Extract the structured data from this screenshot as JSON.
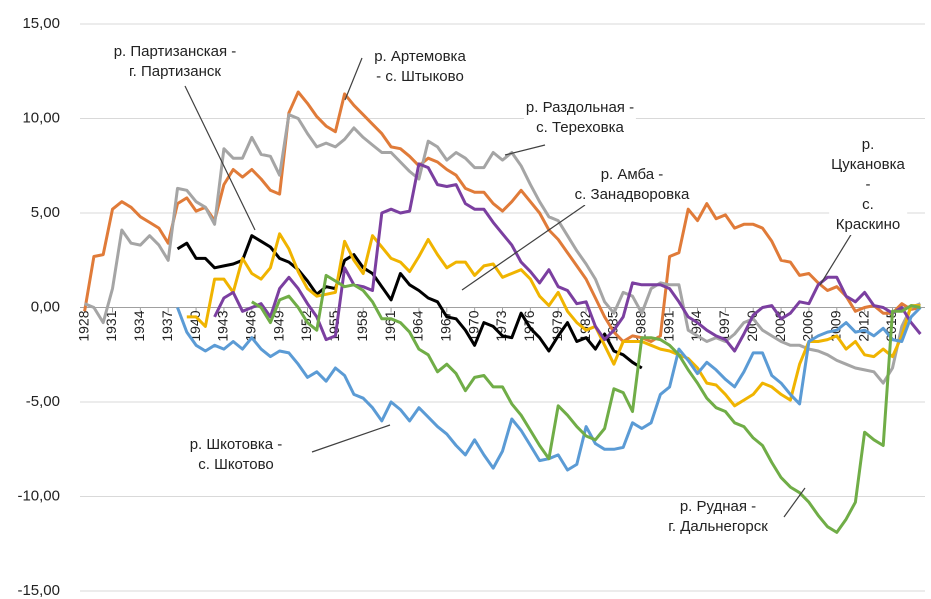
{
  "chart_data": {
    "type": "line",
    "x": [
      1928,
      1929,
      1930,
      1931,
      1932,
      1933,
      1934,
      1935,
      1936,
      1937,
      1938,
      1939,
      1940,
      1941,
      1942,
      1943,
      1944,
      1945,
      1946,
      1947,
      1948,
      1949,
      1950,
      1951,
      1952,
      1953,
      1954,
      1955,
      1956,
      1957,
      1958,
      1959,
      1960,
      1961,
      1962,
      1963,
      1964,
      1965,
      1966,
      1967,
      1968,
      1969,
      1970,
      1971,
      1972,
      1973,
      1974,
      1975,
      1976,
      1977,
      1978,
      1979,
      1980,
      1981,
      1982,
      1983,
      1984,
      1985,
      1986,
      1987,
      1988,
      1989,
      1990,
      1991,
      1992,
      1993,
      1994,
      1995,
      1996,
      1997,
      1998,
      1999,
      2000,
      2001,
      2002,
      2003,
      2004,
      2005,
      2006,
      2007,
      2008,
      2009,
      2010,
      2011,
      2012,
      2013,
      2014,
      2015,
      2016,
      2017,
      2018
    ],
    "xlim": [
      1927.5,
      2018.5
    ],
    "xticks": [
      1928,
      1931,
      1934,
      1937,
      1940,
      1943,
      1946,
      1949,
      1952,
      1955,
      1958,
      1961,
      1964,
      1967,
      1970,
      1973,
      1976,
      1979,
      1982,
      1985,
      1988,
      1991,
      1994,
      1997,
      2000,
      2003,
      2006,
      2009,
      2012,
      2015
    ],
    "ylim": [
      -15,
      15
    ],
    "yticks": [
      {
        "value": -15,
        "label": "-15,00"
      },
      {
        "value": -10,
        "label": "-10,00"
      },
      {
        "value": -5,
        "label": "-5,00"
      },
      {
        "value": 0,
        "label": "0,00"
      },
      {
        "value": 5,
        "label": "5,00"
      },
      {
        "value": 10,
        "label": "10,00"
      },
      {
        "value": 15,
        "label": "15,00"
      }
    ],
    "grid": true,
    "series": [
      {
        "name": "р. Артемовка\n- с. Штыково",
        "color": "#e07b39",
        "values": [
          -0.2,
          2.7,
          2.8,
          5.2,
          5.6,
          5.3,
          4.8,
          4.5,
          4.2,
          3.4,
          5.5,
          5.8,
          5.1,
          5.3,
          4.6,
          6.5,
          7.3,
          6.9,
          7.3,
          6.8,
          6.2,
          6.0,
          10.3,
          11.4,
          10.8,
          10.1,
          9.6,
          9.3,
          11.3,
          10.7,
          10.2,
          9.7,
          9.2,
          8.5,
          8.4,
          8.0,
          7.5,
          7.9,
          7.7,
          7.3,
          7.0,
          6.3,
          6.1,
          6.1,
          5.5,
          5.1,
          5.6,
          6.2,
          5.6,
          5.0,
          4.1,
          3.6,
          2.9,
          2.2,
          1.5,
          0.5,
          -0.5,
          -1.3,
          -1.8,
          -1.5,
          -1.6,
          -1.8,
          -1.5,
          2.7,
          2.9,
          5.2,
          4.6,
          5.5,
          4.7,
          4.9,
          4.2,
          4.4,
          4.4,
          4.2,
          3.5,
          2.5,
          2.4,
          1.7,
          1.8,
          1.3,
          0.9,
          1.1,
          0.6,
          -0.2,
          0.0,
          0.1,
          -0.3,
          -0.3,
          0.2,
          -0.1,
          0.0
        ]
      },
      {
        "name": "р. Раздольная -\nс. Тереховка",
        "color": "#a5a5a5",
        "values": [
          0.2,
          0.0,
          -0.8,
          1.0,
          4.1,
          3.4,
          3.3,
          3.8,
          3.3,
          2.5,
          6.3,
          6.2,
          5.6,
          5.3,
          4.4,
          8.4,
          7.9,
          7.9,
          9.0,
          8.1,
          8.0,
          7.0,
          10.2,
          10.0,
          9.2,
          8.5,
          8.7,
          8.5,
          8.9,
          9.5,
          9.0,
          8.6,
          8.2,
          8.2,
          7.7,
          7.2,
          6.8,
          8.8,
          8.5,
          7.8,
          8.2,
          7.9,
          7.4,
          7.4,
          8.2,
          7.8,
          8.2,
          7.5,
          6.5,
          5.6,
          4.8,
          4.6,
          3.8,
          3.0,
          2.3,
          1.5,
          0.3,
          -0.3,
          0.8,
          0.6,
          -0.3,
          1.0,
          1.3,
          1.2,
          1.2,
          -1.2,
          -1.5,
          -1.8,
          -1.6,
          -1.8,
          -1.4,
          -0.8,
          -0.6,
          -1.2,
          -1.5,
          -1.8,
          -2.0,
          -2.0,
          -2.2,
          -2.3,
          -2.5,
          -2.8,
          -3.0,
          -3.2,
          -3.3,
          -3.4,
          -4.0,
          -3.2,
          -1.0,
          0.0,
          0.2
        ]
      },
      {
        "name": "р. Партизанская -\nг. Партизанск",
        "color": "#000000",
        "values": [
          null,
          null,
          null,
          null,
          null,
          null,
          null,
          null,
          null,
          null,
          3.1,
          3.4,
          2.6,
          2.6,
          2.1,
          2.2,
          2.3,
          2.5,
          3.8,
          3.5,
          3.2,
          2.6,
          2.4,
          2.0,
          1.4,
          0.7,
          1.1,
          1.0,
          2.5,
          2.8,
          2.1,
          1.8,
          1.1,
          0.4,
          1.8,
          1.2,
          0.9,
          0.5,
          0.3,
          -0.5,
          -0.6,
          -1.2,
          -2.0,
          -0.8,
          -1.0,
          -1.5,
          -1.6,
          -0.3,
          -1.1,
          -1.6,
          -2.3,
          -1.5,
          -0.8,
          -1.8,
          -1.6,
          -2.2,
          -1.4,
          -2.3,
          -2.5,
          -2.9,
          -3.2,
          null,
          null,
          null,
          null,
          null,
          null,
          null,
          null,
          null,
          null,
          null,
          null,
          null,
          null,
          null,
          null,
          null,
          null,
          null,
          null,
          null,
          null,
          null,
          null,
          null,
          null,
          null,
          null,
          null,
          null
        ]
      },
      {
        "name": "р. Амба -\nс. Занадворовка",
        "color": "#f0b400",
        "values": [
          null,
          null,
          null,
          null,
          null,
          null,
          null,
          null,
          null,
          null,
          null,
          -0.5,
          -0.5,
          -1.0,
          1.5,
          1.5,
          0.8,
          2.6,
          1.8,
          1.5,
          2.1,
          3.9,
          3.1,
          1.9,
          1.0,
          0.6,
          0.7,
          0.8,
          3.5,
          2.5,
          1.8,
          3.8,
          3.2,
          2.6,
          2.4,
          1.9,
          2.7,
          3.6,
          2.8,
          2.1,
          2.4,
          2.4,
          1.7,
          2.2,
          2.3,
          1.6,
          1.8,
          2.0,
          1.5,
          0.6,
          0.1,
          0.8,
          -0.2,
          -0.8,
          -1.2,
          -1.0,
          -2.0,
          -3.0,
          -1.8,
          -1.8,
          -1.8,
          -2.0,
          -2.2,
          -2.3,
          -2.5,
          -2.7,
          -3.2,
          -4.0,
          -4.1,
          -4.6,
          -5.2,
          -4.9,
          -4.6,
          -4.0,
          -4.2,
          -4.6,
          -4.9,
          -3.0,
          -1.8,
          -1.8,
          -1.7,
          -1.5,
          -2.2,
          -1.8,
          -2.5,
          -2.6,
          -2.2,
          -2.6,
          -1.5,
          0.1,
          0.1
        ]
      },
      {
        "name": "р. Цукановка -\nс. Краскино",
        "color": "#7b3fa0",
        "values": [
          null,
          null,
          null,
          null,
          null,
          null,
          null,
          null,
          null,
          null,
          null,
          null,
          null,
          null,
          -0.5,
          0.5,
          0.8,
          -0.2,
          0.0,
          0.2,
          -0.5,
          1.0,
          1.6,
          1.0,
          0.2,
          -0.5,
          -1.7,
          -1.5,
          2.1,
          1.2,
          1.1,
          0.9,
          5.0,
          5.2,
          5.0,
          5.1,
          7.6,
          7.4,
          6.5,
          6.4,
          6.5,
          5.5,
          5.2,
          5.2,
          4.5,
          3.9,
          3.3,
          2.4,
          1.9,
          1.3,
          2.0,
          1.1,
          0.9,
          0.2,
          0.3,
          -1.0,
          -1.7,
          -1.2,
          -0.5,
          1.3,
          1.2,
          1.2,
          1.2,
          1.0,
          0.3,
          -0.5,
          -0.8,
          -1.2,
          -1.5,
          -1.7,
          -2.3,
          -1.4,
          -0.4,
          0.0,
          0.1,
          -0.6,
          -0.3,
          0.3,
          0.2,
          1.2,
          1.6,
          1.6,
          0.6,
          0.3,
          0.8,
          0.1,
          0.0,
          -0.3,
          0.0,
          -0.8,
          -1.4
        ]
      },
      {
        "name": "р. Шкотовка -\nс. Шкотово",
        "color": "#5b9bd5",
        "values": [
          null,
          null,
          null,
          null,
          null,
          null,
          null,
          null,
          null,
          null,
          0.0,
          -1.3,
          -2.0,
          -2.3,
          -2.0,
          -2.2,
          -1.8,
          -2.2,
          -1.6,
          -2.2,
          -2.6,
          -2.3,
          -2.4,
          -3.0,
          -3.7,
          -3.4,
          -3.9,
          -3.2,
          -3.6,
          -4.6,
          -4.8,
          -5.3,
          -6.0,
          -5.0,
          -5.4,
          -6.0,
          -5.3,
          -5.8,
          -6.3,
          -6.7,
          -7.3,
          -7.8,
          -7.0,
          -7.8,
          -8.5,
          -7.6,
          -5.9,
          -6.5,
          -7.3,
          -8.1,
          -8.0,
          -7.8,
          -8.6,
          -8.3,
          -6.3,
          -7.2,
          -7.5,
          -7.5,
          -7.4,
          -6.1,
          -6.4,
          -6.1,
          -4.6,
          -4.2,
          -2.2,
          -2.8,
          -3.5,
          -2.9,
          -3.3,
          -3.8,
          -4.2,
          -3.4,
          -2.4,
          -2.4,
          -3.6,
          -4.0,
          -4.6,
          -5.1,
          -1.8,
          -1.5,
          -1.3,
          -1.2,
          -0.8,
          -1.3,
          -1.2,
          -1.5,
          -1.1,
          -1.7,
          -1.8,
          -0.5,
          0.0
        ]
      },
      {
        "name": "р. Рудная -\nг. Дальнегорск",
        "color": "#70ad47",
        "values": [
          null,
          null,
          null,
          null,
          null,
          null,
          null,
          null,
          null,
          null,
          null,
          null,
          null,
          null,
          null,
          null,
          null,
          null,
          0.3,
          0.0,
          -0.8,
          0.4,
          0.6,
          0.0,
          -0.8,
          -1.2,
          1.7,
          1.4,
          1.1,
          1.2,
          0.9,
          0.3,
          -0.6,
          -0.6,
          -0.8,
          -1.3,
          -2.2,
          -2.5,
          -3.4,
          -3.0,
          -3.5,
          -4.4,
          -3.7,
          -3.6,
          -4.2,
          -4.2,
          -5.1,
          -5.7,
          -6.5,
          -7.3,
          -8.0,
          -5.2,
          -5.7,
          -6.3,
          -6.8,
          -7.0,
          -6.4,
          -4.3,
          -4.5,
          -5.5,
          -1.6,
          -1.6,
          -1.7,
          -2.0,
          -2.5,
          -3.3,
          -4.0,
          -4.8,
          -5.3,
          -5.5,
          -6.1,
          -6.3,
          -6.9,
          -7.3,
          -8.2,
          -9.0,
          -9.5,
          -9.8,
          -10.3,
          -11.0,
          -11.6,
          -11.9,
          -11.2,
          -10.3,
          -6.6,
          -7.0,
          -7.3,
          -0.2,
          -0.2,
          0.1,
          0.0
        ]
      }
    ]
  }
}
